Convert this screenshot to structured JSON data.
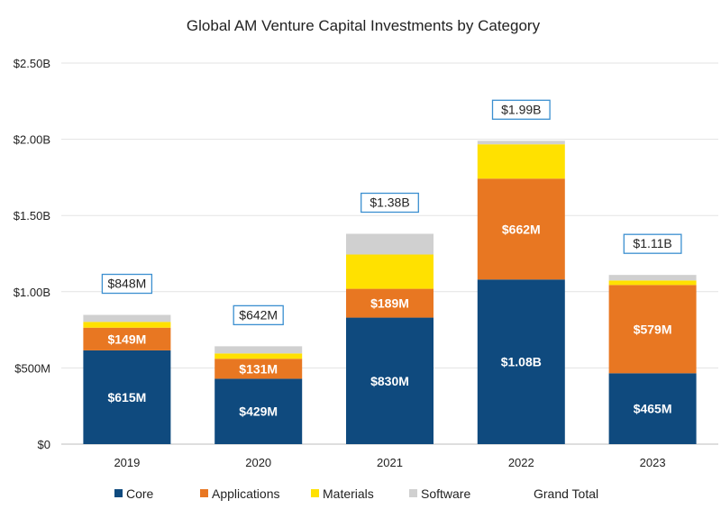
{
  "chart_data": {
    "type": "bar",
    "stacked": true,
    "title": "Global AM Venture Capital Investments by Category",
    "categories": [
      "2019",
      "2020",
      "2021",
      "2022",
      "2023"
    ],
    "y_ticks": [
      "$0",
      "$500M",
      "$1.00B",
      "$1.50B",
      "$2.00B",
      "$2.50B"
    ],
    "ylim": [
      0,
      2500
    ],
    "units": "millions USD",
    "series": [
      {
        "name": "Core",
        "color": "#0f4a7e",
        "values": [
          615,
          429,
          830,
          1080,
          465
        ],
        "labels": [
          "$615M",
          "$429M",
          "$830M",
          "$1.08B",
          "$465M"
        ]
      },
      {
        "name": "Applications",
        "color": "#e87722",
        "values": [
          149,
          131,
          189,
          662,
          579
        ],
        "labels": [
          "$149M",
          "$131M",
          "$189M",
          "$662M",
          "$579M"
        ]
      },
      {
        "name": "Materials",
        "color": "#ffe100",
        "values": [
          38,
          35,
          225,
          225,
          30
        ],
        "labels": [
          "",
          "",
          "",
          "",
          ""
        ]
      },
      {
        "name": "Software",
        "color": "#d0d0d0",
        "values": [
          46,
          47,
          136,
          23,
          36
        ],
        "labels": [
          "",
          "",
          "",
          "",
          ""
        ]
      }
    ],
    "grand_total": {
      "name": "Grand Total",
      "values": [
        848,
        642,
        1380,
        1990,
        1110
      ],
      "labels": [
        "$848M",
        "$642M",
        "$1.38B",
        "$1.99B",
        "$1.11B"
      ],
      "box_color": "#3b8fd0"
    },
    "legend_position": "bottom",
    "grid": true
  }
}
